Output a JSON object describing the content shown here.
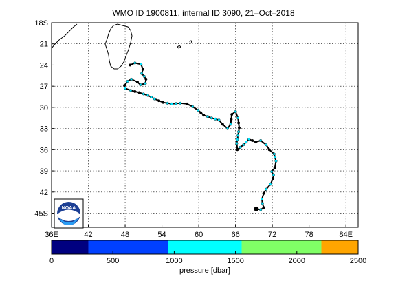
{
  "title": "WMO ID 1900811, internal ID 3090, 21–Oct–2018",
  "map": {
    "lat_ticks": [
      "18S",
      "21",
      "24",
      "27",
      "30",
      "33",
      "36",
      "39",
      "42",
      "45S"
    ],
    "lon_ticks": [
      "36E",
      "42",
      "48",
      "54",
      "60",
      "66",
      "72",
      "78",
      "84E"
    ],
    "lat_range_deg": [
      -18,
      -47
    ],
    "lon_range_deg": [
      36,
      86
    ],
    "grid": true,
    "trajectory_color": "#000000",
    "marker_color": "#00e5ff",
    "land_outline_color": "#000000"
  },
  "trajectory_latlon": [
    [
      -24.0,
      48.8
    ],
    [
      -23.7,
      49.6
    ],
    [
      -23.9,
      50.6
    ],
    [
      -24.6,
      50.9
    ],
    [
      -25.2,
      50.7
    ],
    [
      -25.6,
      51.1
    ],
    [
      -26.0,
      51.4
    ],
    [
      -26.6,
      51.3
    ],
    [
      -26.8,
      50.5
    ],
    [
      -26.4,
      50.0
    ],
    [
      -26.0,
      49.0
    ],
    [
      -26.3,
      48.4
    ],
    [
      -26.9,
      47.9
    ],
    [
      -27.3,
      48.0
    ],
    [
      -27.6,
      48.9
    ],
    [
      -27.9,
      50.3
    ],
    [
      -28.3,
      51.7
    ],
    [
      -28.8,
      52.8
    ],
    [
      -29.3,
      54.2
    ],
    [
      -29.5,
      55.6
    ],
    [
      -29.4,
      57.0
    ],
    [
      -29.5,
      58.1
    ],
    [
      -29.9,
      59.0
    ],
    [
      -30.4,
      59.9
    ],
    [
      -31.1,
      60.8
    ],
    [
      -31.5,
      62.1
    ],
    [
      -31.8,
      63.3
    ],
    [
      -32.4,
      63.9
    ],
    [
      -33.0,
      64.7
    ],
    [
      -32.4,
      65.2
    ],
    [
      -31.0,
      65.4
    ],
    [
      -30.6,
      66.0
    ],
    [
      -31.5,
      66.4
    ],
    [
      -32.9,
      66.6
    ],
    [
      -34.0,
      66.4
    ],
    [
      -35.1,
      66.2
    ],
    [
      -36.0,
      66.3
    ],
    [
      -35.3,
      67.3
    ],
    [
      -34.5,
      68.2
    ],
    [
      -34.9,
      69.3
    ],
    [
      -34.7,
      70.1
    ],
    [
      -35.3,
      71.0
    ],
    [
      -36.0,
      71.5
    ],
    [
      -36.6,
      72.3
    ],
    [
      -37.6,
      72.6
    ],
    [
      -38.6,
      72.4
    ],
    [
      -39.1,
      71.9
    ],
    [
      -39.6,
      72.2
    ],
    [
      -40.1,
      72.1
    ],
    [
      -40.9,
      71.7
    ],
    [
      -41.6,
      71.0
    ],
    [
      -42.2,
      70.6
    ],
    [
      -43.0,
      70.3
    ],
    [
      -43.6,
      70.4
    ],
    [
      -44.2,
      70.6
    ],
    [
      -44.5,
      70.1
    ],
    [
      -44.4,
      69.4
    ]
  ],
  "noaa_logo": {
    "text": "NOAA"
  },
  "colorbar": {
    "xlabel": "pressure [dbar]",
    "range": [
      0,
      2500
    ],
    "tick_values": [
      0,
      500,
      1000,
      1500,
      2000,
      2500
    ],
    "tick_labels": [
      "0",
      "500",
      "1000",
      "1500",
      "2000",
      "2500"
    ],
    "bins": [
      {
        "from": 0,
        "to": 300,
        "color": "#000080"
      },
      {
        "from": 300,
        "to": 950,
        "color": "#0040ff"
      },
      {
        "from": 950,
        "to": 1550,
        "color": "#00ffff"
      },
      {
        "from": 1550,
        "to": 2200,
        "color": "#80ff66"
      },
      {
        "from": 2200,
        "to": 2500,
        "color": "#ffa500"
      }
    ]
  }
}
